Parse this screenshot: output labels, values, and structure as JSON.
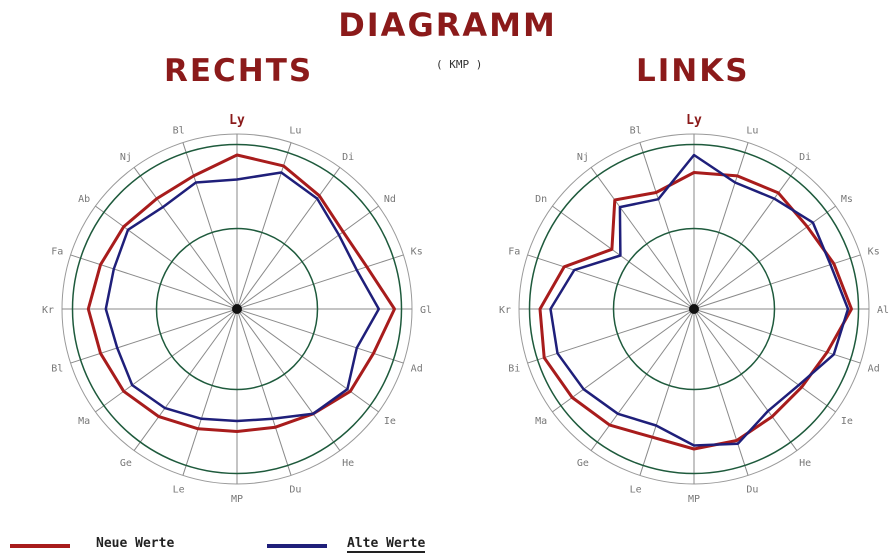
{
  "title": "DIAGRAMM",
  "subtitle": "( KMP )",
  "colors": {
    "new": "#a81c1c",
    "old": "#1f1f7a",
    "title": "#8b1a1a",
    "grid_ring": "#1e5a3c"
  },
  "legend": [
    {
      "label": "Neue Werte",
      "color": "#a81c1c"
    },
    {
      "label": "Alte Werte",
      "color": "#1f1f7a"
    }
  ],
  "chart_data": [
    {
      "type": "radar",
      "title": "RECHTS",
      "axes": [
        "Ly",
        "Lu",
        "Di",
        "Nd",
        "Ks",
        "Gl",
        "Ad",
        "Ie",
        "He",
        "Du",
        "MP",
        "Le",
        "Ge",
        "Ma",
        "Bl",
        "Kr",
        "Fa",
        "Ab",
        "Nj",
        "Bl"
      ],
      "rings": [
        50,
        100
      ],
      "series": [
        {
          "name": "Neue Werte",
          "values": [
            88,
            86,
            80,
            75,
            78,
            90,
            82,
            80,
            74,
            71,
            70,
            72,
            76,
            80,
            82,
            85,
            82,
            80,
            78,
            80
          ]
        },
        {
          "name": "Alte Werte",
          "values": [
            74,
            82,
            78,
            72,
            72,
            81,
            72,
            78,
            74,
            66,
            64,
            66,
            70,
            74,
            72,
            75,
            74,
            77,
            72,
            76
          ]
        }
      ]
    },
    {
      "type": "radar",
      "title": "LINKS",
      "axes": [
        "Ly",
        "Lu",
        "Di",
        "Ms",
        "Ks",
        "Al",
        "Ad",
        "Ie",
        "He",
        "Du",
        "MP",
        "Le",
        "Ge",
        "Ma",
        "Bi",
        "Kr",
        "Fa",
        "Dn",
        "Nj",
        "Bl"
      ],
      "rings": [
        50,
        100
      ],
      "series": [
        {
          "name": "Neue Werte",
          "values": [
            78,
            80,
            82,
            80,
            84,
            90,
            80,
            76,
            76,
            79,
            80,
            77,
            82,
            86,
            90,
            88,
            78,
            58,
            77,
            70
          ]
        },
        {
          "name": "Alte Werte",
          "values": [
            88,
            76,
            78,
            84,
            82,
            88,
            84,
            74,
            72,
            81,
            78,
            70,
            74,
            78,
            82,
            82,
            72,
            52,
            72,
            66
          ]
        }
      ]
    }
  ]
}
